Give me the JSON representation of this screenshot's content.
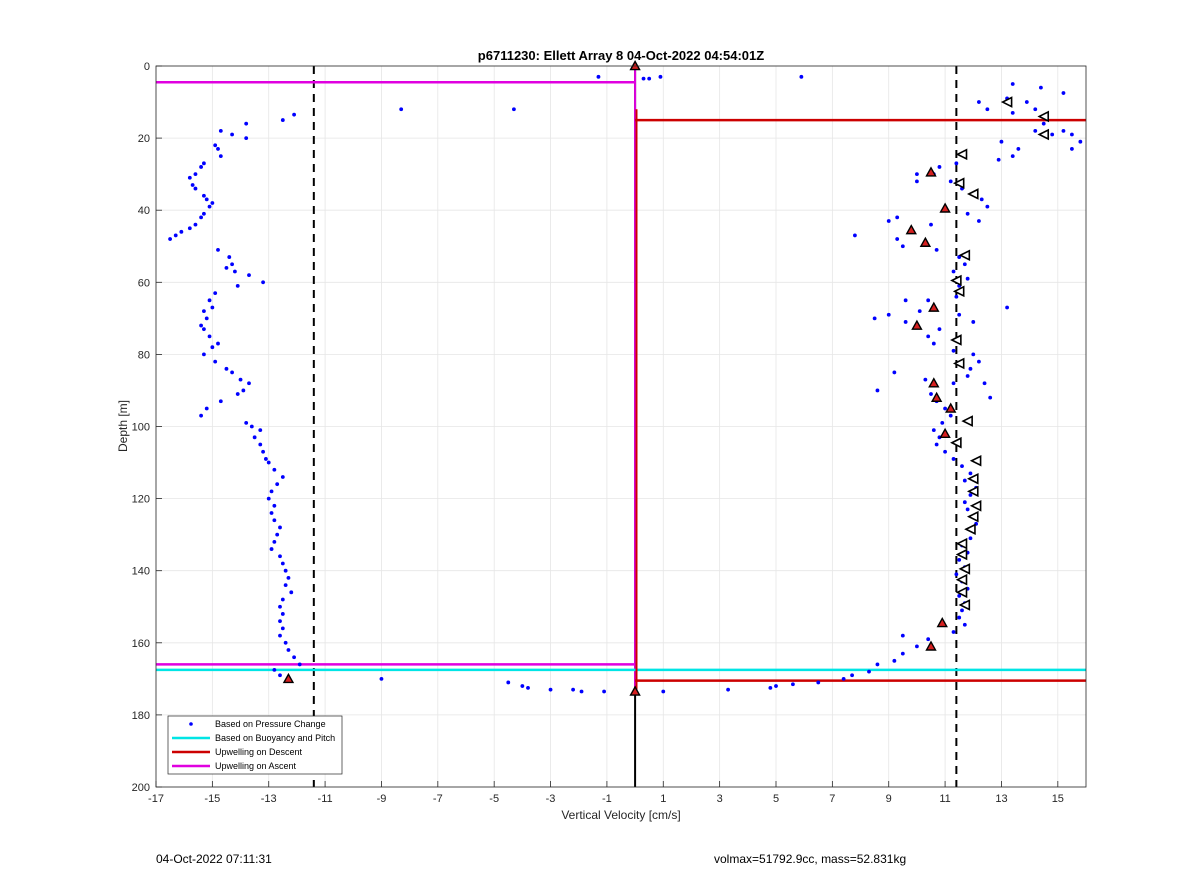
{
  "chart_data": {
    "type": "scatter",
    "title": "p6711230: Ellett Array 8 04-Oct-2022 04:54:01Z",
    "xlabel": "Vertical Velocity [cm/s]",
    "ylabel": "Depth [m]",
    "xlim": [
      -17,
      16
    ],
    "ylim": [
      0,
      200
    ],
    "y_reversed": true,
    "grid": true,
    "x_ticks": [
      -17,
      -15,
      -13,
      -11,
      -9,
      -7,
      -5,
      -3,
      -1,
      1,
      3,
      5,
      7,
      9,
      11,
      13,
      15
    ],
    "y_ticks": [
      0,
      20,
      40,
      60,
      80,
      100,
      120,
      140,
      160,
      180,
      200
    ],
    "legend_position": "bottom-left",
    "legend": [
      {
        "label": "Based on Pressure Change",
        "color": "#0000ff",
        "style": "dot"
      },
      {
        "label": "Based on Buoyancy and Pitch",
        "color": "#00e5e5",
        "style": "line"
      },
      {
        "label": "Upwelling on Descent",
        "color": "#cc0000",
        "style": "line"
      },
      {
        "label": "Upwelling on Ascent",
        "color": "#e000e0",
        "style": "line"
      }
    ],
    "zero_line": {
      "x": 0,
      "color": "#000000"
    },
    "dashed_lines": [
      {
        "x": -11.4,
        "color": "#000000"
      },
      {
        "x": 11.4,
        "color": "#000000"
      }
    ],
    "upwelling_descent": {
      "color": "#cc0000",
      "segments": [
        {
          "y": 15,
          "x_from": 0,
          "x_to": 16
        },
        {
          "y": 170.5,
          "x_from": 0,
          "x_to": 16
        }
      ],
      "vertical": {
        "x": 0.05,
        "y_from": 12,
        "y_to": 173
      }
    },
    "upwelling_ascent": {
      "color": "#e000e0",
      "segments": [
        {
          "y": 4.5,
          "x_from": -17,
          "x_to": 0
        },
        {
          "y": 166,
          "x_from": -17,
          "x_to": 0
        }
      ],
      "vertical": {
        "x": 0.0,
        "y_from": 0,
        "y_to": 174
      }
    },
    "buoyancy_pitch": {
      "color": "#00e5e5",
      "segments": [
        {
          "y": 167.5,
          "x_from": -17,
          "x_to": 16
        }
      ]
    },
    "pressure_change_points": [
      [
        -1.3,
        3
      ],
      [
        0.3,
        3.5
      ],
      [
        0.5,
        3.5
      ],
      [
        0.9,
        3
      ],
      [
        5.9,
        3
      ],
      [
        -8.3,
        12
      ],
      [
        -4.3,
        12
      ],
      [
        -12.1,
        13.5
      ],
      [
        -12.5,
        15
      ],
      [
        -13.8,
        16
      ],
      [
        -14.7,
        18
      ],
      [
        -14.3,
        19
      ],
      [
        -13.8,
        20
      ],
      [
        -14.9,
        22
      ],
      [
        -14.8,
        23
      ],
      [
        -14.7,
        25
      ],
      [
        -15.3,
        27
      ],
      [
        -15.4,
        28
      ],
      [
        -15.6,
        30
      ],
      [
        -15.8,
        31
      ],
      [
        -15.7,
        33
      ],
      [
        -15.6,
        34
      ],
      [
        -15.3,
        36
      ],
      [
        -15.2,
        37
      ],
      [
        -15.0,
        38
      ],
      [
        -15.1,
        39
      ],
      [
        -15.3,
        41
      ],
      [
        -15.4,
        42
      ],
      [
        -15.6,
        44
      ],
      [
        -15.8,
        45
      ],
      [
        -16.1,
        46
      ],
      [
        -16.3,
        47
      ],
      [
        -16.5,
        48
      ],
      [
        -14.8,
        51
      ],
      [
        -14.4,
        53
      ],
      [
        -14.3,
        55
      ],
      [
        -14.5,
        56
      ],
      [
        -14.2,
        57
      ],
      [
        -13.7,
        58
      ],
      [
        -13.2,
        60
      ],
      [
        -14.1,
        61
      ],
      [
        -14.9,
        63
      ],
      [
        -15.1,
        65
      ],
      [
        -15.0,
        67
      ],
      [
        -15.3,
        68
      ],
      [
        -15.2,
        70
      ],
      [
        -15.4,
        72
      ],
      [
        -15.3,
        73
      ],
      [
        -15.1,
        75
      ],
      [
        -14.8,
        77
      ],
      [
        -15.0,
        78
      ],
      [
        -15.3,
        80
      ],
      [
        -14.9,
        82
      ],
      [
        -14.5,
        84
      ],
      [
        -14.3,
        85
      ],
      [
        -14.0,
        87
      ],
      [
        -13.7,
        88
      ],
      [
        -13.9,
        90
      ],
      [
        -14.1,
        91
      ],
      [
        -14.7,
        93
      ],
      [
        -15.2,
        95
      ],
      [
        -15.4,
        97
      ],
      [
        -13.8,
        99
      ],
      [
        -13.6,
        100
      ],
      [
        -13.3,
        101
      ],
      [
        -13.5,
        103
      ],
      [
        -13.3,
        105
      ],
      [
        -13.2,
        107
      ],
      [
        -13.1,
        109
      ],
      [
        -13.0,
        110
      ],
      [
        -12.8,
        112
      ],
      [
        -12.5,
        114
      ],
      [
        -12.7,
        116
      ],
      [
        -12.9,
        118
      ],
      [
        -13.0,
        120
      ],
      [
        -12.8,
        122
      ],
      [
        -12.9,
        124
      ],
      [
        -12.8,
        126
      ],
      [
        -12.6,
        128
      ],
      [
        -12.7,
        130
      ],
      [
        -12.8,
        132
      ],
      [
        -12.9,
        134
      ],
      [
        -12.6,
        136
      ],
      [
        -12.5,
        138
      ],
      [
        -12.4,
        140
      ],
      [
        -12.3,
        142
      ],
      [
        -12.4,
        144
      ],
      [
        -12.2,
        146
      ],
      [
        -12.5,
        148
      ],
      [
        -12.6,
        150
      ],
      [
        -12.5,
        152
      ],
      [
        -12.6,
        154
      ],
      [
        -12.5,
        156
      ],
      [
        -12.6,
        158
      ],
      [
        -12.4,
        160
      ],
      [
        -12.3,
        162
      ],
      [
        -12.1,
        164
      ],
      [
        -11.9,
        166
      ],
      [
        -12.8,
        167.5
      ],
      [
        -12.6,
        169
      ],
      [
        -9.0,
        170
      ],
      [
        -4.5,
        171
      ],
      [
        -4.0,
        172
      ],
      [
        -3.8,
        172.5
      ],
      [
        -3.0,
        173
      ],
      [
        -2.2,
        173
      ],
      [
        -1.9,
        173.5
      ],
      [
        -1.1,
        173.5
      ],
      [
        1.0,
        173.5
      ],
      [
        3.3,
        173
      ],
      [
        4.8,
        172.5
      ],
      [
        5.0,
        172
      ],
      [
        5.6,
        171.5
      ],
      [
        6.5,
        171
      ],
      [
        7.4,
        170
      ],
      [
        7.7,
        169
      ],
      [
        8.3,
        168
      ],
      [
        8.6,
        166
      ],
      [
        9.2,
        165
      ],
      [
        9.5,
        163
      ],
      [
        10.0,
        161
      ],
      [
        10.4,
        159
      ],
      [
        9.5,
        158
      ],
      [
        11.3,
        157
      ],
      [
        11.7,
        155
      ],
      [
        11.5,
        153
      ],
      [
        11.6,
        151
      ],
      [
        11.7,
        149
      ],
      [
        11.5,
        147
      ],
      [
        11.8,
        145
      ],
      [
        11.6,
        143
      ],
      [
        11.4,
        141
      ],
      [
        11.7,
        139
      ],
      [
        11.5,
        137
      ],
      [
        11.8,
        135
      ],
      [
        11.6,
        133
      ],
      [
        11.9,
        131
      ],
      [
        12.0,
        129
      ],
      [
        12.1,
        127
      ],
      [
        12.0,
        125
      ],
      [
        11.8,
        123
      ],
      [
        11.7,
        121
      ],
      [
        11.9,
        119
      ],
      [
        12.1,
        117
      ],
      [
        11.7,
        115
      ],
      [
        11.9,
        113
      ],
      [
        11.6,
        111
      ],
      [
        11.3,
        109
      ],
      [
        11.0,
        107
      ],
      [
        10.7,
        105
      ],
      [
        10.8,
        103
      ],
      [
        10.6,
        101
      ],
      [
        10.9,
        99
      ],
      [
        11.2,
        97
      ],
      [
        11.0,
        95
      ],
      [
        10.7,
        93
      ],
      [
        10.5,
        91
      ],
      [
        8.6,
        90
      ],
      [
        9.2,
        85
      ],
      [
        10.3,
        87
      ],
      [
        11.3,
        88
      ],
      [
        11.8,
        86
      ],
      [
        12.4,
        88
      ],
      [
        12.6,
        92
      ],
      [
        11.9,
        84
      ],
      [
        12.2,
        82
      ],
      [
        12.0,
        80
      ],
      [
        11.3,
        79
      ],
      [
        10.6,
        77
      ],
      [
        10.4,
        75
      ],
      [
        10.8,
        73
      ],
      [
        9.6,
        71
      ],
      [
        8.5,
        70
      ],
      [
        9.0,
        69
      ],
      [
        10.1,
        68
      ],
      [
        11.5,
        69
      ],
      [
        12.0,
        71
      ],
      [
        13.2,
        67
      ],
      [
        10.4,
        65
      ],
      [
        9.6,
        65
      ],
      [
        11.4,
        64
      ],
      [
        11.5,
        61
      ],
      [
        11.8,
        59
      ],
      [
        11.3,
        57
      ],
      [
        11.7,
        55
      ],
      [
        11.5,
        53
      ],
      [
        10.7,
        51
      ],
      [
        9.5,
        50
      ],
      [
        9.3,
        48
      ],
      [
        7.8,
        47
      ],
      [
        9.0,
        43
      ],
      [
        9.3,
        42
      ],
      [
        10.5,
        44
      ],
      [
        11.8,
        41
      ],
      [
        12.2,
        43
      ],
      [
        12.5,
        39
      ],
      [
        12.3,
        37
      ],
      [
        11.6,
        34
      ],
      [
        11.2,
        32
      ],
      [
        10.6,
        30
      ],
      [
        10.0,
        30
      ],
      [
        10.0,
        32
      ],
      [
        10.8,
        28
      ],
      [
        11.4,
        27
      ],
      [
        12.9,
        26
      ],
      [
        13.4,
        25
      ],
      [
        13.0,
        21
      ],
      [
        13.6,
        23
      ],
      [
        14.2,
        18
      ],
      [
        14.5,
        16
      ],
      [
        14.2,
        12
      ],
      [
        13.4,
        13
      ],
      [
        13.9,
        10
      ],
      [
        13.2,
        9
      ],
      [
        12.2,
        10
      ],
      [
        12.5,
        12
      ],
      [
        13.4,
        5
      ],
      [
        14.4,
        6
      ],
      [
        15.2,
        7.5
      ],
      [
        15.2,
        18
      ],
      [
        15.5,
        19
      ],
      [
        15.8,
        21
      ],
      [
        15.5,
        23
      ],
      [
        14.8,
        19
      ]
    ],
    "descent_markers_red": [
      [
        0.0,
        0
      ],
      [
        10.5,
        29.5
      ],
      [
        11.0,
        39.5
      ],
      [
        9.8,
        45.5
      ],
      [
        10.3,
        49
      ],
      [
        10.6,
        67
      ],
      [
        10.0,
        72
      ],
      [
        10.6,
        88
      ],
      [
        10.7,
        92
      ],
      [
        11.2,
        95
      ],
      [
        11.0,
        102
      ],
      [
        10.9,
        154.5
      ],
      [
        10.5,
        161
      ],
      [
        -12.3,
        170
      ],
      [
        0.0,
        173.5
      ]
    ],
    "ascent_markers_white": [
      [
        13.2,
        10
      ],
      [
        14.5,
        14
      ],
      [
        14.5,
        19
      ],
      [
        11.6,
        24.5
      ],
      [
        11.5,
        32.5
      ],
      [
        12.0,
        35.5
      ],
      [
        11.7,
        52.5
      ],
      [
        11.4,
        59.5
      ],
      [
        11.5,
        62.5
      ],
      [
        11.4,
        76
      ],
      [
        11.5,
        82.5
      ],
      [
        11.8,
        98.5
      ],
      [
        11.4,
        104.5
      ],
      [
        12.1,
        109.5
      ],
      [
        12.0,
        114.5
      ],
      [
        12.0,
        118
      ],
      [
        12.1,
        122
      ],
      [
        12.0,
        125
      ],
      [
        11.9,
        128.5
      ],
      [
        11.6,
        132.5
      ],
      [
        11.6,
        135.5
      ],
      [
        11.7,
        139.5
      ],
      [
        11.6,
        142.5
      ],
      [
        11.6,
        146
      ],
      [
        11.7,
        149.5
      ]
    ]
  },
  "footer": {
    "left": "04-Oct-2022 07:11:31",
    "right": "volmax=51792.9cc, mass=52.831kg"
  }
}
